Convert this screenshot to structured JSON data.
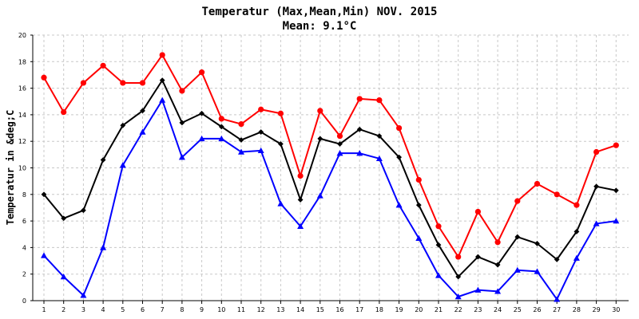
{
  "chart_data": {
    "type": "line",
    "title": "Temperatur (Max,Mean,Min) NOV. 2015",
    "subtitle": "Mean: 9.1°C",
    "xlabel": "",
    "ylabel": "Temperatur in &deg;C",
    "categories": [
      "1",
      "2",
      "3",
      "4",
      "5",
      "6",
      "7",
      "8",
      "9",
      "10",
      "11",
      "12",
      "13",
      "14",
      "15",
      "16",
      "17",
      "18",
      "19",
      "20",
      "21",
      "22",
      "23",
      "24",
      "25",
      "26",
      "27",
      "28",
      "29",
      "30"
    ],
    "ylim": [
      0,
      20
    ],
    "yticks": [
      "0",
      "2",
      "4",
      "6",
      "8",
      "10",
      "12",
      "14",
      "16",
      "18",
      "20"
    ],
    "grid": true,
    "legend": "none",
    "series": [
      {
        "key": "max",
        "color": "#ff0000",
        "marker": "circle",
        "values": [
          16.8,
          14.2,
          16.4,
          17.7,
          16.4,
          16.4,
          18.5,
          15.8,
          17.2,
          13.7,
          13.3,
          14.4,
          14.1,
          9.4,
          14.3,
          12.4,
          15.2,
          15.1,
          13.0,
          9.1,
          5.6,
          3.3,
          6.7,
          4.4,
          7.5,
          8.8,
          8.0,
          7.2,
          11.2,
          11.7
        ]
      },
      {
        "key": "mean",
        "color": "#000000",
        "marker": "diamond",
        "values": [
          8.0,
          6.2,
          6.8,
          10.6,
          13.2,
          14.3,
          16.6,
          13.4,
          14.1,
          13.1,
          12.1,
          12.7,
          11.8,
          7.6,
          12.2,
          11.8,
          12.9,
          12.4,
          10.8,
          7.2,
          4.2,
          1.8,
          3.3,
          2.7,
          4.8,
          4.3,
          3.1,
          5.2,
          8.6,
          8.3
        ]
      },
      {
        "key": "min",
        "color": "#0000ff",
        "marker": "triangle",
        "values": [
          3.4,
          1.8,
          0.4,
          4.0,
          10.2,
          12.7,
          15.1,
          10.8,
          12.2,
          12.2,
          11.2,
          11.3,
          7.3,
          5.6,
          7.9,
          11.1,
          11.1,
          10.7,
          7.2,
          4.7,
          1.9,
          0.3,
          0.8,
          0.7,
          2.3,
          2.2,
          0.1,
          3.2,
          5.8,
          6.0
        ]
      }
    ]
  }
}
